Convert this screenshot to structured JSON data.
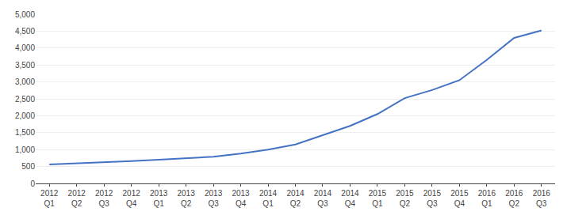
{
  "chart_data": {
    "type": "line",
    "categories": [
      "2012\nQ1",
      "2012\nQ2",
      "2012\nQ3",
      "2012\nQ4",
      "2013\nQ1",
      "2013\nQ2",
      "2013\nQ3",
      "2013\nQ4",
      "2014\nQ1",
      "2014\nQ2",
      "2014\nQ3",
      "2014\nQ4",
      "2015\nQ1",
      "2015\nQ2",
      "2015\nQ3",
      "2015\nQ4",
      "2016\nQ1",
      "2016\nQ2",
      "2016\nQ3"
    ],
    "values": [
      560,
      590,
      630,
      660,
      700,
      740,
      790,
      880,
      1000,
      1150,
      1420,
      1700,
      2050,
      2520,
      2760,
      3050,
      3650,
      4300,
      4520
    ],
    "color": "#4472C4",
    "ylim": [
      0,
      5000
    ],
    "yticks": [
      0,
      500,
      {
        "value": 1000,
        "label": "1,000"
      },
      {
        "value": 1500,
        "label": "1,500"
      },
      {
        "value": 2000,
        "label": "2,000"
      },
      {
        "value": 2500,
        "label": "2,500"
      },
      {
        "value": 3000,
        "label": "3,000"
      },
      {
        "value": 3500,
        "label": "3,500"
      },
      {
        "value": 4000,
        "label": "4,000"
      },
      {
        "value": 4500,
        "label": "4,500"
      },
      {
        "value": 5000,
        "label": "5,000"
      }
    ],
    "grid": true
  }
}
